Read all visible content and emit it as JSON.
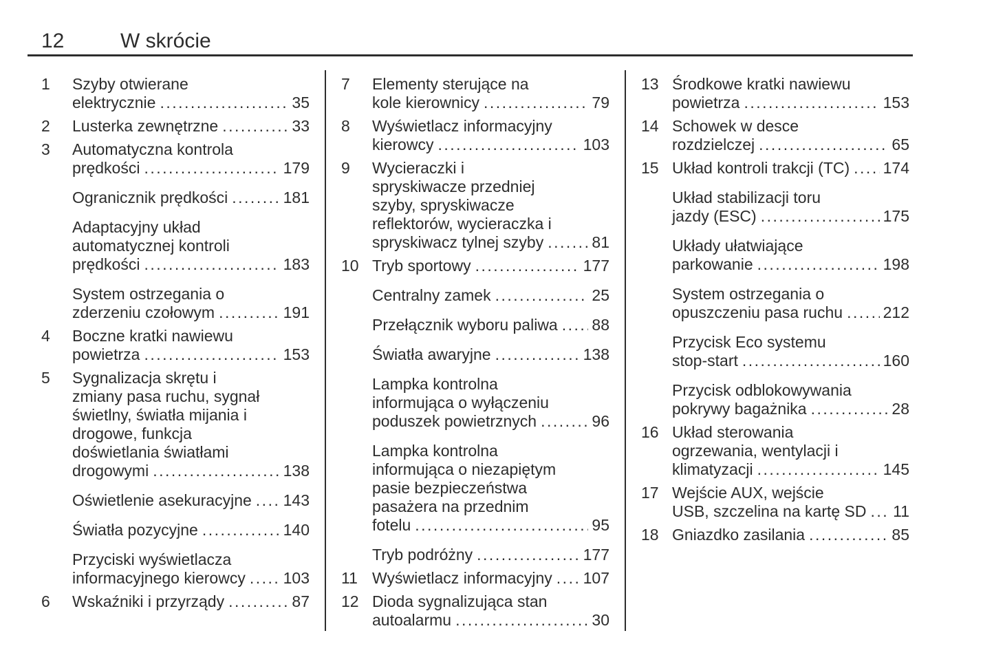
{
  "header": {
    "page_number": "12",
    "title": "W skrócie"
  },
  "colors": {
    "text": "#2d2d2d",
    "rule": "#2d2d2d",
    "background": "#ffffff"
  },
  "toc": {
    "columns": [
      {
        "entries": [
          {
            "num": "1",
            "lines": [
              "Szyby otwierane",
              "elektrycznie"
            ],
            "page": "35"
          },
          {
            "num": "2",
            "lines": [
              "Lusterka zewnętrzne"
            ],
            "page": "33"
          },
          {
            "num": "3",
            "lines": [
              "Automatyczna kontrola",
              "prędkości"
            ],
            "page": "179"
          },
          {
            "num": "",
            "lines": [
              "Ogranicznik prędkości"
            ],
            "page": "181"
          },
          {
            "num": "",
            "lines": [
              "Adaptacyjny układ",
              "automatycznej kontroli",
              "prędkości"
            ],
            "page": "183"
          },
          {
            "num": "",
            "lines": [
              "System ostrzegania o",
              "zderzeniu czołowym"
            ],
            "page": "191"
          },
          {
            "num": "4",
            "lines": [
              "Boczne kratki nawiewu",
              "powietrza"
            ],
            "page": "153"
          },
          {
            "num": "5",
            "lines": [
              "Sygnalizacja skrętu i",
              "zmiany pasa ruchu, sygnał",
              "świetlny, światła mijania i",
              "drogowe, funkcja",
              "doświetlania światłami",
              "drogowymi"
            ],
            "page": "138"
          },
          {
            "num": "",
            "lines": [
              "Oświetlenie asekuracyjne"
            ],
            "page": "143"
          },
          {
            "num": "",
            "lines": [
              "Światła pozycyjne"
            ],
            "page": "140"
          },
          {
            "num": "",
            "lines": [
              "Przyciski wyświetlacza",
              "informacyjnego kierowcy"
            ],
            "page": "103"
          },
          {
            "num": "6",
            "lines": [
              "Wskaźniki i przyrządy"
            ],
            "page": "87"
          }
        ]
      },
      {
        "entries": [
          {
            "num": "7",
            "lines": [
              "Elementy sterujące na",
              "kole kierownicy"
            ],
            "page": "79"
          },
          {
            "num": "8",
            "lines": [
              "Wyświetlacz informacyjny",
              "kierowcy"
            ],
            "page": "103"
          },
          {
            "num": "9",
            "lines": [
              "Wycieraczki i",
              "spryskiwacze przedniej",
              "szyby, spryskiwacze",
              "reflektorów, wycieraczka i",
              "spryskiwacz tylnej szyby"
            ],
            "page": "81"
          },
          {
            "num": "10",
            "lines": [
              "Tryb sportowy"
            ],
            "page": "177"
          },
          {
            "num": "",
            "lines": [
              "Centralny zamek"
            ],
            "page": "25"
          },
          {
            "num": "",
            "lines": [
              "Przełącznik wyboru paliwa"
            ],
            "page": "88"
          },
          {
            "num": "",
            "lines": [
              "Światła awaryjne"
            ],
            "page": "138"
          },
          {
            "num": "",
            "lines": [
              "Lampka kontrolna",
              "informująca o wyłączeniu",
              "poduszek powietrznych"
            ],
            "page": "96"
          },
          {
            "num": "",
            "lines": [
              "Lampka kontrolna",
              "informująca o niezapiętym",
              "pasie bezpieczeństwa",
              "pasażera na przednim",
              "fotelu"
            ],
            "page": "95"
          },
          {
            "num": "",
            "lines": [
              "Tryb podróżny"
            ],
            "page": "177"
          },
          {
            "num": "11",
            "lines": [
              "Wyświetlacz informacyjny"
            ],
            "page": "107"
          },
          {
            "num": "12",
            "lines": [
              "Dioda sygnalizująca stan",
              "autoalarmu"
            ],
            "page": "30"
          }
        ]
      },
      {
        "entries": [
          {
            "num": "13",
            "lines": [
              "Środkowe kratki nawiewu",
              "powietrza"
            ],
            "page": "153"
          },
          {
            "num": "14",
            "lines": [
              "Schowek w desce",
              "rozdzielczej"
            ],
            "page": "65"
          },
          {
            "num": "15",
            "lines": [
              "Układ kontroli trakcji (TC)"
            ],
            "page": "174"
          },
          {
            "num": "",
            "lines": [
              "Układ stabilizacji toru",
              "jazdy (ESC)"
            ],
            "page": "175"
          },
          {
            "num": "",
            "lines": [
              "Układy ułatwiające",
              "parkowanie"
            ],
            "page": "198"
          },
          {
            "num": "",
            "lines": [
              "System ostrzegania o",
              "opuszczeniu pasa ruchu"
            ],
            "page": "212"
          },
          {
            "num": "",
            "lines": [
              "Przycisk Eco systemu",
              "stop-start"
            ],
            "page": "160"
          },
          {
            "num": "",
            "lines": [
              "Przycisk odblokowywania",
              "pokrywy bagażnika"
            ],
            "page": "28"
          },
          {
            "num": "16",
            "lines": [
              "Układ sterowania",
              "ogrzewania, wentylacji i",
              "klimatyzacji"
            ],
            "page": "145"
          },
          {
            "num": "17",
            "lines": [
              "Wejście AUX, wejście",
              "USB, szczelina na kartę SD"
            ],
            "page": "11"
          },
          {
            "num": "18",
            "lines": [
              "Gniazdko zasilania"
            ],
            "page": "85"
          }
        ]
      }
    ]
  }
}
